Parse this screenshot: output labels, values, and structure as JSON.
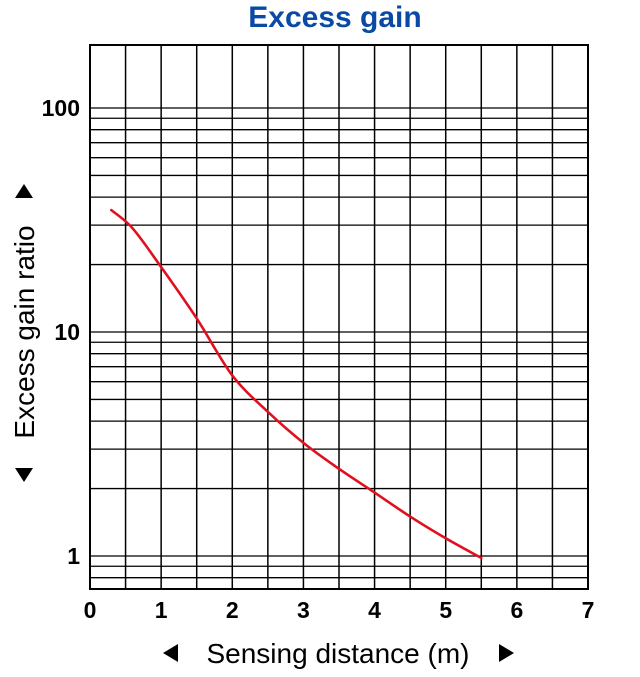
{
  "chart_data": {
    "type": "line",
    "title": "Excess gain",
    "xlabel": "Sensing distance (m)",
    "ylabel": "Excess gain ratio",
    "x_scale": "linear",
    "y_scale": "log",
    "xlim": [
      0,
      7
    ],
    "ylim": [
      0.7,
      200
    ],
    "x_ticks": [
      "0",
      "1",
      "2",
      "3",
      "4",
      "5",
      "6",
      "7"
    ],
    "y_ticks": [
      "1",
      "10",
      "100"
    ],
    "grid": true,
    "series": [
      {
        "color": "#e0101e",
        "x": [
          0.3,
          0.6,
          1.0,
          1.5,
          2.0,
          2.5,
          3.0,
          3.5,
          4.0,
          4.5,
          5.0,
          5.5
        ],
        "y": [
          35,
          29,
          19.5,
          11.5,
          6.4,
          4.4,
          3.2,
          2.45,
          1.92,
          1.5,
          1.2,
          0.98
        ]
      }
    ]
  }
}
